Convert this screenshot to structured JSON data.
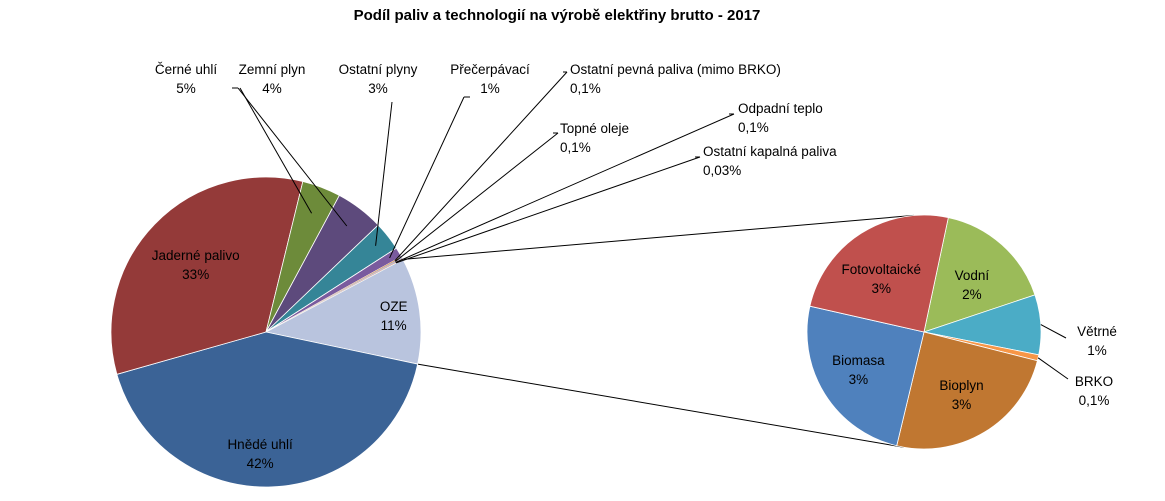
{
  "chart_data": {
    "type": "pie",
    "title": "Podíl paliv a technologií na výrobě elektřiny brutto - 2017",
    "main_pie": {
      "slices": [
        {
          "name": "OZE",
          "value": 11,
          "label": "11%",
          "color": "#b9c4de"
        },
        {
          "name": "Hnědé uhlí",
          "value": 42,
          "label": "42%",
          "color": "#3b6396"
        },
        {
          "name": "Jaderné palivo",
          "value": 33,
          "label": "33%",
          "color": "#943a39"
        },
        {
          "name": "Zemní plyn",
          "value": 4,
          "label": "4%",
          "color": "#6d8b3a"
        },
        {
          "name": "Černé uhlí",
          "value": 5,
          "label": "5%",
          "color": "#5d4a7c"
        },
        {
          "name": "Ostatní plyny",
          "value": 3,
          "label": "3%",
          "color": "#358597"
        },
        {
          "name": "Přečerpávací",
          "value": 1,
          "label": "1%",
          "color": "#7a5b9e"
        },
        {
          "name": "Ostatní pevná paliva (mimo BRKO)",
          "value": 0.1,
          "label": "0,1%",
          "color": "#d07d2a"
        },
        {
          "name": "Topné oleje",
          "value": 0.1,
          "label": "0,1%",
          "color": "#8ea6cf"
        },
        {
          "name": "Odpadní teplo",
          "value": 0.1,
          "label": "0,1%",
          "color": "#cf8e8e"
        },
        {
          "name": "Ostatní kapalná paliva",
          "value": 0.03,
          "label": "0,03%",
          "color": "#b2c98a"
        }
      ]
    },
    "detail_pie": {
      "of": "OZE",
      "slices": [
        {
          "name": "Vodní",
          "value": 2,
          "label": "2%",
          "color": "#9bbb59"
        },
        {
          "name": "Větrné",
          "value": 1,
          "label": "1%",
          "color": "#4bacc6"
        },
        {
          "name": "BRKO",
          "value": 0.1,
          "label": "0,1%",
          "color": "#f79646"
        },
        {
          "name": "Bioplyn",
          "value": 3,
          "label": "3%",
          "color": "#c07731"
        },
        {
          "name": "Biomasa",
          "value": 3,
          "label": "3%",
          "color": "#4f81bd"
        },
        {
          "name": "Fotovoltaické",
          "value": 3,
          "label": "3%",
          "color": "#c0504d"
        }
      ]
    }
  }
}
